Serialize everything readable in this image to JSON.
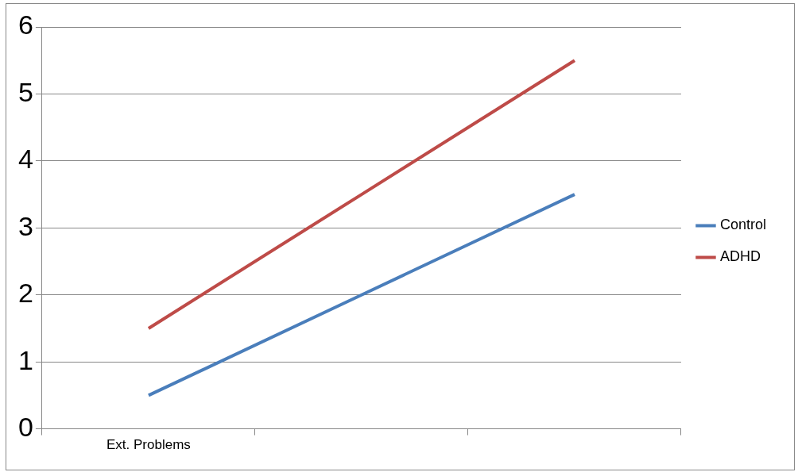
{
  "chart_data": {
    "type": "line",
    "categories": [
      "Ext. Problems",
      null,
      null
    ],
    "series": [
      {
        "name": "Control",
        "color": "#4a7ebb",
        "values": [
          0.5,
          2,
          3.5
        ]
      },
      {
        "name": "ADHD",
        "color": "#be4b48",
        "values": [
          1.5,
          3.5,
          5.5
        ]
      }
    ],
    "ylim": [
      0,
      6
    ],
    "yticks": [
      0,
      1,
      2,
      3,
      4,
      5,
      6
    ],
    "grid": "y",
    "legend": "right",
    "marker": "none",
    "line_style": "solid"
  }
}
